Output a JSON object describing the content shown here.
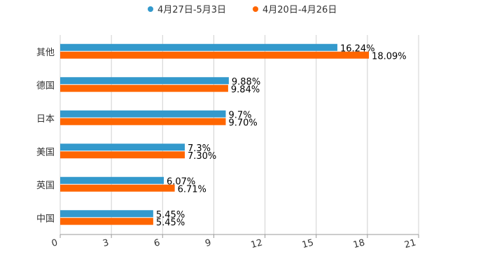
{
  "chart_data": {
    "type": "bar",
    "orientation": "horizontal",
    "title": "",
    "xlabel": "",
    "ylabel": "",
    "xlim": [
      0,
      21
    ],
    "x_ticks": [
      "0",
      "3",
      "6",
      "9",
      "12",
      "15",
      "18",
      "21"
    ],
    "grid": true,
    "legend_position": "top-center",
    "categories": [
      "其他",
      "德国",
      "日本",
      "美国",
      "英国",
      "中国"
    ],
    "series": [
      {
        "name": "4月27日-5月3日",
        "color": "#3399cc",
        "values": [
          16.24,
          9.88,
          9.7,
          7.3,
          6.07,
          5.45
        ],
        "labels": [
          "16.24%",
          "9.88%",
          "9.7%",
          "7.3%",
          "6.07%",
          "5.45%"
        ]
      },
      {
        "name": "4月20日-4月26日",
        "color": "#ff6600",
        "values": [
          18.09,
          9.84,
          9.7,
          7.3,
          6.71,
          5.45
        ],
        "labels": [
          "18.09%",
          "9.84%",
          "9.70%",
          "7.30%",
          "6.71%",
          "5.45%"
        ]
      }
    ]
  }
}
